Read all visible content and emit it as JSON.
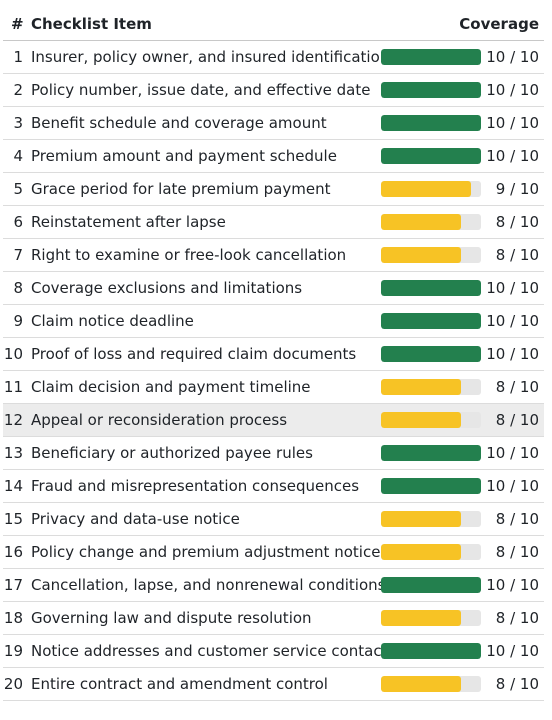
{
  "header": {
    "num": "#",
    "item": "Checklist Item",
    "coverage": "Coverage"
  },
  "colors": {
    "full": "#23804e",
    "partial": "#f7c325",
    "track": "#e6e6e6",
    "selected_row": "#ececec"
  },
  "rows": [
    {
      "num": "1",
      "item": "Insurer, policy owner, and insured identification",
      "score": 10,
      "max": 10,
      "coverage": "10 / 10"
    },
    {
      "num": "2",
      "item": "Policy number, issue date, and effective date",
      "score": 10,
      "max": 10,
      "coverage": "10 / 10"
    },
    {
      "num": "3",
      "item": "Benefit schedule and coverage amount",
      "score": 10,
      "max": 10,
      "coverage": "10 / 10"
    },
    {
      "num": "4",
      "item": "Premium amount and payment schedule",
      "score": 10,
      "max": 10,
      "coverage": "10 / 10"
    },
    {
      "num": "5",
      "item": "Grace period for late premium payment",
      "score": 9,
      "max": 10,
      "coverage": "9 / 10"
    },
    {
      "num": "6",
      "item": "Reinstatement after lapse",
      "score": 8,
      "max": 10,
      "coverage": "8 / 10"
    },
    {
      "num": "7",
      "item": "Right to examine or free-look cancellation",
      "score": 8,
      "max": 10,
      "coverage": "8 / 10"
    },
    {
      "num": "8",
      "item": "Coverage exclusions and limitations",
      "score": 10,
      "max": 10,
      "coverage": "10 / 10"
    },
    {
      "num": "9",
      "item": "Claim notice deadline",
      "score": 10,
      "max": 10,
      "coverage": "10 / 10"
    },
    {
      "num": "10",
      "item": "Proof of loss and required claim documents",
      "score": 10,
      "max": 10,
      "coverage": "10 / 10"
    },
    {
      "num": "11",
      "item": "Claim decision and payment timeline",
      "score": 8,
      "max": 10,
      "coverage": "8 / 10"
    },
    {
      "num": "12",
      "item": "Appeal or reconsideration process",
      "score": 8,
      "max": 10,
      "coverage": "8 / 10",
      "selected": true
    },
    {
      "num": "13",
      "item": "Beneficiary or authorized payee rules",
      "score": 10,
      "max": 10,
      "coverage": "10 / 10"
    },
    {
      "num": "14",
      "item": "Fraud and misrepresentation consequences",
      "score": 10,
      "max": 10,
      "coverage": "10 / 10"
    },
    {
      "num": "15",
      "item": "Privacy and data-use notice",
      "score": 8,
      "max": 10,
      "coverage": "8 / 10"
    },
    {
      "num": "16",
      "item": "Policy change and premium adjustment notice",
      "score": 8,
      "max": 10,
      "coverage": "8 / 10"
    },
    {
      "num": "17",
      "item": "Cancellation, lapse, and nonrenewal conditions",
      "score": 10,
      "max": 10,
      "coverage": "10 / 10"
    },
    {
      "num": "18",
      "item": "Governing law and dispute resolution",
      "score": 8,
      "max": 10,
      "coverage": "8 / 10"
    },
    {
      "num": "19",
      "item": "Notice addresses and customer service contacts",
      "score": 10,
      "max": 10,
      "coverage": "10 / 10"
    },
    {
      "num": "20",
      "item": "Entire contract and amendment control",
      "score": 8,
      "max": 10,
      "coverage": "8 / 10"
    }
  ]
}
